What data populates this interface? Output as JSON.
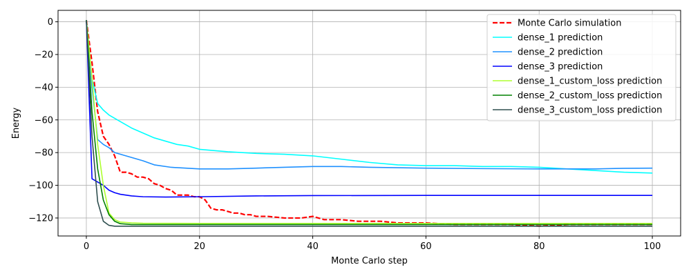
{
  "chart_data": {
    "type": "line",
    "xlabel": "Monte Carlo step",
    "ylabel": "Energy",
    "xlim": [
      -5,
      105
    ],
    "ylim": [
      -131,
      7
    ],
    "xticks": [
      0,
      20,
      40,
      60,
      80,
      100
    ],
    "yticks": [
      0,
      -20,
      -40,
      -60,
      -80,
      -100,
      -120
    ],
    "grid": true,
    "legend_position": "top-right",
    "series": [
      {
        "name": "Monte Carlo simulation",
        "color": "#ff0000",
        "dash": "dashed",
        "points": [
          [
            0,
            1
          ],
          [
            1,
            -25
          ],
          [
            2,
            -55
          ],
          [
            3,
            -70
          ],
          [
            4,
            -75
          ],
          [
            5,
            -82
          ],
          [
            6,
            -92
          ],
          [
            7,
            -92
          ],
          [
            8,
            -93
          ],
          [
            9,
            -95
          ],
          [
            10,
            -95
          ],
          [
            11,
            -96
          ],
          [
            12,
            -99
          ],
          [
            13,
            -100
          ],
          [
            14,
            -102
          ],
          [
            15,
            -103
          ],
          [
            16,
            -106
          ],
          [
            17,
            -106
          ],
          [
            18,
            -106
          ],
          [
            19,
            -107
          ],
          [
            20,
            -107
          ],
          [
            21,
            -109
          ],
          [
            22,
            -114
          ],
          [
            23,
            -115
          ],
          [
            24,
            -115
          ],
          [
            25,
            -116
          ],
          [
            26,
            -117
          ],
          [
            27,
            -117
          ],
          [
            28,
            -118
          ],
          [
            29,
            -118
          ],
          [
            30,
            -119
          ],
          [
            32,
            -119
          ],
          [
            35,
            -120
          ],
          [
            38,
            -120
          ],
          [
            40,
            -119
          ],
          [
            42,
            -121
          ],
          [
            45,
            -121
          ],
          [
            48,
            -122
          ],
          [
            50,
            -122
          ],
          [
            52,
            -122
          ],
          [
            55,
            -123
          ],
          [
            60,
            -123
          ],
          [
            65,
            -124
          ],
          [
            70,
            -124
          ],
          [
            75,
            -124
          ],
          [
            80,
            -125
          ],
          [
            85,
            -124
          ],
          [
            90,
            -124
          ],
          [
            95,
            -124
          ],
          [
            100,
            -124
          ]
        ]
      },
      {
        "name": "dense_1 prediction",
        "color": "#00ffff",
        "dash": "solid",
        "points": [
          [
            0,
            1
          ],
          [
            1,
            -35
          ],
          [
            2,
            -50
          ],
          [
            3,
            -54
          ],
          [
            4,
            -57
          ],
          [
            6,
            -61
          ],
          [
            8,
            -65
          ],
          [
            10,
            -68
          ],
          [
            12,
            -71
          ],
          [
            14,
            -73
          ],
          [
            16,
            -75
          ],
          [
            18,
            -76
          ],
          [
            20,
            -78
          ],
          [
            25,
            -79.5
          ],
          [
            30,
            -80.5
          ],
          [
            35,
            -81
          ],
          [
            40,
            -82
          ],
          [
            45,
            -84
          ],
          [
            50,
            -86
          ],
          [
            55,
            -87.5
          ],
          [
            60,
            -88
          ],
          [
            65,
            -88
          ],
          [
            70,
            -88.5
          ],
          [
            75,
            -88.5
          ],
          [
            80,
            -89
          ],
          [
            85,
            -90
          ],
          [
            90,
            -91
          ],
          [
            95,
            -92
          ],
          [
            100,
            -92.5
          ]
        ]
      },
      {
        "name": "dense_2 prediction",
        "color": "#1e90ff",
        "dash": "solid",
        "points": [
          [
            0,
            1
          ],
          [
            1,
            -40
          ],
          [
            2,
            -72
          ],
          [
            3,
            -75
          ],
          [
            4,
            -77
          ],
          [
            5,
            -80
          ],
          [
            6,
            -81
          ],
          [
            8,
            -83
          ],
          [
            10,
            -85
          ],
          [
            12,
            -87.5
          ],
          [
            15,
            -89
          ],
          [
            20,
            -90
          ],
          [
            25,
            -90
          ],
          [
            30,
            -89.5
          ],
          [
            35,
            -89
          ],
          [
            40,
            -88.5
          ],
          [
            45,
            -88.5
          ],
          [
            50,
            -89
          ],
          [
            60,
            -89.5
          ],
          [
            70,
            -89.8
          ],
          [
            80,
            -90
          ],
          [
            90,
            -90
          ],
          [
            95,
            -89.6
          ],
          [
            100,
            -89.5
          ]
        ]
      },
      {
        "name": "dense_3 prediction",
        "color": "#0000ff",
        "dash": "solid",
        "points": [
          [
            0,
            1
          ],
          [
            1,
            -96
          ],
          [
            2,
            -98
          ],
          [
            3,
            -100
          ],
          [
            4,
            -103
          ],
          [
            5,
            -104.5
          ],
          [
            6,
            -105.5
          ],
          [
            8,
            -106.5
          ],
          [
            10,
            -107
          ],
          [
            14,
            -107.2
          ],
          [
            20,
            -107
          ],
          [
            30,
            -106.5
          ],
          [
            40,
            -106.3
          ],
          [
            60,
            -106.2
          ],
          [
            80,
            -106.2
          ],
          [
            100,
            -106.2
          ]
        ]
      },
      {
        "name": "dense_1_custom_loss prediction",
        "color": "#adff2f",
        "dash": "solid",
        "points": [
          [
            0,
            1
          ],
          [
            1,
            -35
          ],
          [
            2,
            -75
          ],
          [
            3,
            -100
          ],
          [
            4,
            -117
          ],
          [
            5,
            -121
          ],
          [
            6,
            -122.5
          ],
          [
            8,
            -123
          ],
          [
            10,
            -123.2
          ],
          [
            20,
            -123.3
          ],
          [
            40,
            -123.3
          ],
          [
            60,
            -123.3
          ],
          [
            80,
            -123.3
          ],
          [
            100,
            -123.3
          ]
        ]
      },
      {
        "name": "dense_2_custom_loss prediction",
        "color": "#008000",
        "dash": "solid",
        "points": [
          [
            0,
            1
          ],
          [
            1,
            -55
          ],
          [
            2,
            -90
          ],
          [
            3,
            -109
          ],
          [
            4,
            -118
          ],
          [
            5,
            -122
          ],
          [
            6,
            -123.5
          ],
          [
            8,
            -124
          ],
          [
            20,
            -124
          ],
          [
            40,
            -124
          ],
          [
            60,
            -124
          ],
          [
            80,
            -124
          ],
          [
            100,
            -124
          ]
        ]
      },
      {
        "name": "dense_3_custom_loss prediction",
        "color": "#2f4f4f",
        "dash": "solid",
        "points": [
          [
            0,
            1
          ],
          [
            1,
            -70
          ],
          [
            2,
            -110
          ],
          [
            3,
            -122
          ],
          [
            4,
            -124.5
          ],
          [
            5,
            -125
          ],
          [
            10,
            -125
          ],
          [
            20,
            -125
          ],
          [
            40,
            -125
          ],
          [
            60,
            -125
          ],
          [
            80,
            -125
          ],
          [
            100,
            -125
          ]
        ]
      }
    ]
  }
}
